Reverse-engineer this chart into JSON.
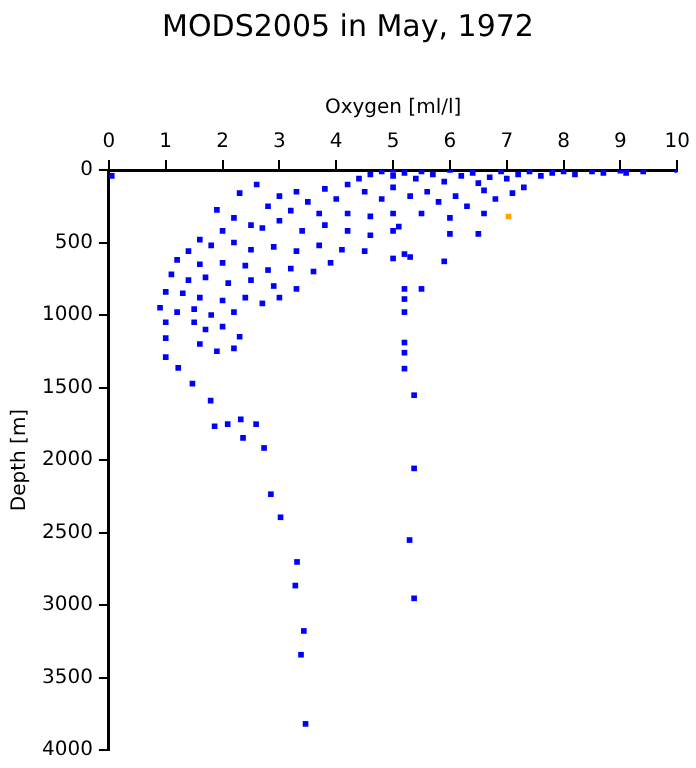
{
  "chart_data": {
    "type": "scatter",
    "title": "MODS2005 in May, 1972",
    "xlabel": "Oxygen [ml/l]",
    "ylabel": "Depth [m]",
    "xlim": [
      0,
      10
    ],
    "xticks": [
      0,
      1,
      2,
      3,
      4,
      5,
      6,
      7,
      8,
      9,
      10
    ],
    "ylim": [
      4000,
      0
    ],
    "yticks": [
      0,
      500,
      1000,
      1500,
      2000,
      2500,
      3000,
      3500,
      4000
    ],
    "grid": false,
    "legend": false,
    "marker": "square",
    "series": [
      {
        "color": "#0000ff",
        "x": [
          4.4,
          4.6,
          4.8,
          5.0,
          5.0,
          5.2,
          5.4,
          5.5,
          5.7,
          5.9,
          6.0,
          6.2,
          6.4,
          6.5,
          6.7,
          6.9,
          7.0,
          7.2,
          7.4,
          7.6,
          7.8,
          8.0,
          8.2,
          8.5,
          8.7,
          9.0,
          9.1,
          9.4,
          10.0,
          0.05,
          3.8,
          4.2,
          4.0,
          4.5,
          4.8,
          5.0,
          5.3,
          5.6,
          5.8,
          6.1,
          6.3,
          6.6,
          6.8,
          7.1,
          7.3,
          6.6,
          3.0,
          3.3,
          3.5,
          2.6,
          2.3,
          2.8,
          3.2,
          3.7,
          4.2,
          4.6,
          5.0,
          5.5,
          6.0,
          1.9,
          2.2,
          2.5,
          2.0,
          2.7,
          3.0,
          3.4,
          3.8,
          4.2,
          4.6,
          5.0,
          5.1,
          6.0,
          6.5,
          1.6,
          1.4,
          1.8,
          2.2,
          2.5,
          2.9,
          3.3,
          3.7,
          4.1,
          4.5,
          5.0,
          5.2,
          5.3,
          5.9,
          1.2,
          1.6,
          2.0,
          2.4,
          2.8,
          3.2,
          3.6,
          3.9,
          1.1,
          1.4,
          1.7,
          2.1,
          2.5,
          2.9,
          3.3,
          3.0,
          1.0,
          1.3,
          1.6,
          2.0,
          2.4,
          2.7,
          0.9,
          1.2,
          1.5,
          1.8,
          2.2,
          5.2,
          5.5,
          5.2,
          5.2,
          1.0,
          1.5,
          1.7,
          2.0,
          2.3,
          1.0,
          1.6,
          1.9,
          2.2,
          1.0,
          5.2,
          5.2,
          5.2,
          1.22,
          1.47,
          1.79,
          1.86,
          2.09,
          2.32,
          2.59,
          2.36,
          2.73,
          2.85,
          3.02,
          3.31,
          3.28,
          5.37,
          5.37,
          5.29,
          5.37,
          3.43,
          3.38,
          3.46
        ],
        "values": [
          60,
          30,
          10,
          0,
          40,
          20,
          60,
          10,
          30,
          80,
          0,
          40,
          20,
          90,
          50,
          10,
          60,
          30,
          10,
          40,
          20,
          10,
          30,
          10,
          20,
          5,
          20,
          10,
          0,
          40,
          130,
          100,
          200,
          150,
          200,
          120,
          180,
          150,
          220,
          180,
          250,
          140,
          200,
          160,
          120,
          300,
          180,
          150,
          220,
          100,
          160,
          250,
          280,
          300,
          300,
          320,
          300,
          300,
          330,
          275,
          330,
          380,
          420,
          400,
          350,
          420,
          380,
          420,
          450,
          420,
          390,
          440,
          440,
          480,
          560,
          520,
          500,
          550,
          530,
          560,
          520,
          550,
          560,
          610,
          580,
          600,
          630,
          620,
          650,
          640,
          660,
          690,
          680,
          700,
          640,
          720,
          760,
          740,
          780,
          760,
          800,
          820,
          880,
          840,
          850,
          880,
          900,
          880,
          920,
          950,
          980,
          960,
          1000,
          980,
          820,
          820,
          890,
          980,
          1050,
          1050,
          1100,
          1080,
          1150,
          1160,
          1200,
          1250,
          1230,
          1290,
          1190,
          1260,
          1370,
          1365,
          1473,
          1590,
          1767,
          1753,
          1720,
          1753,
          1847,
          1917,
          2236,
          2395,
          2703,
          2866,
          1553,
          2058,
          2552,
          2954,
          3179,
          3343,
          3820
        ]
      },
      {
        "color": "#ffa500",
        "x": [
          7.03
        ],
        "values": [
          321
        ]
      }
    ]
  }
}
